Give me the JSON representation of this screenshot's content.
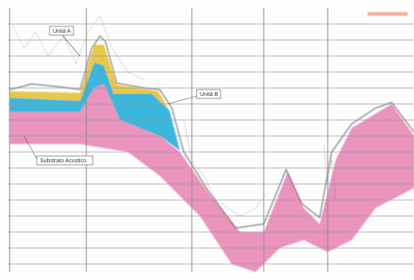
{
  "labels": {
    "unit_a": "Unità A",
    "unit_b": "Unità B",
    "substrate": "Substrato Acustico"
  }
}
